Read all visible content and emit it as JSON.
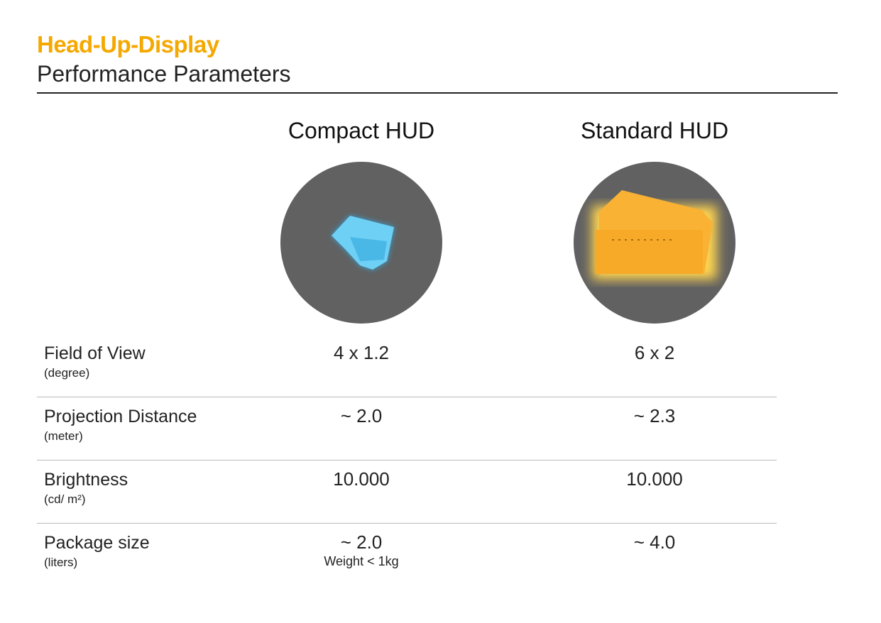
{
  "header": {
    "title": "Head-Up-Display",
    "subtitle": "Performance Parameters"
  },
  "columns": [
    {
      "name": "Compact HUD",
      "glow_color": "#4fc3f7"
    },
    {
      "name": "Standard HUD",
      "glow_color": "#f5a800"
    }
  ],
  "rows": [
    {
      "label": "Field of View",
      "unit": "(degree)",
      "compact": "4 x 1.2",
      "standard": "6 x 2"
    },
    {
      "label": "Projection Distance",
      "unit": "(meter)",
      "compact": "~ 2.0",
      "standard": "~ 2.3"
    },
    {
      "label": "Brightness",
      "unit": "(cd/ m²)",
      "compact": "10.000",
      "standard": "10.000"
    },
    {
      "label": "Package size",
      "unit": "(liters)",
      "compact": "~ 2.0",
      "compact_note": "Weight < 1kg",
      "standard": "~ 4.0"
    }
  ]
}
